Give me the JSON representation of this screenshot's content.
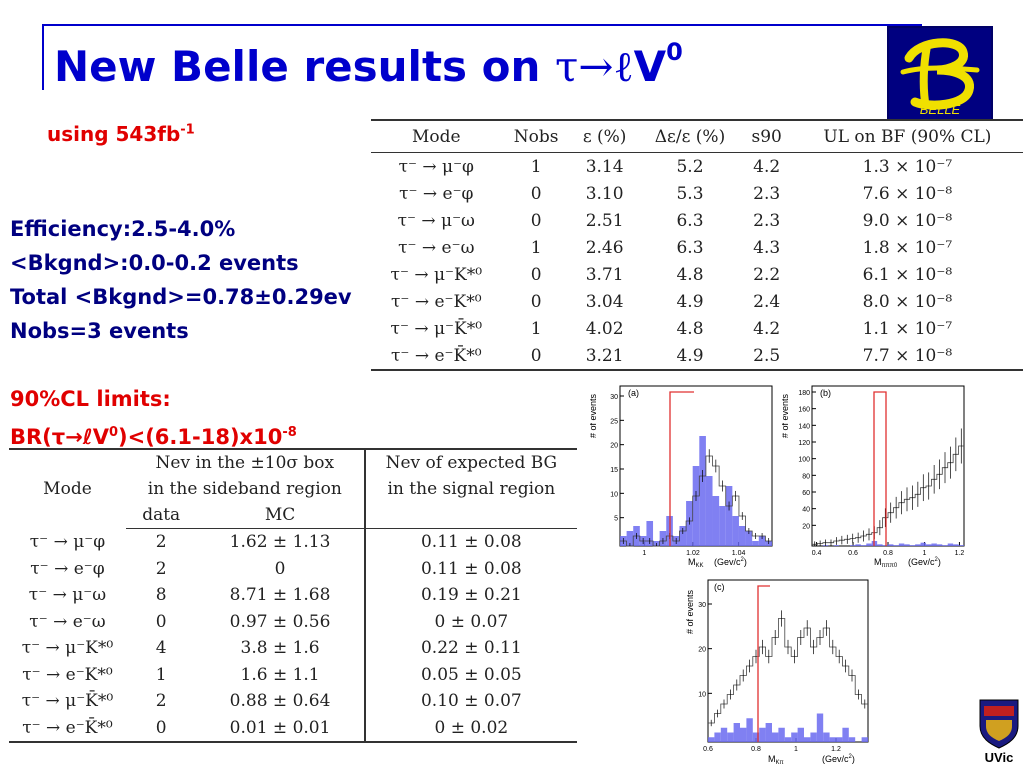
{
  "title": {
    "prefix": "New Belle results on ",
    "tau": "τ",
    "arrow": "→",
    "ell": "ℓ",
    "v": "V",
    "sup": "0"
  },
  "logo": {
    "text": "BELLE"
  },
  "subtitle": {
    "text": "using 543fb",
    "sup": "-1"
  },
  "stats": {
    "efficiency": "Efficiency:2.5-4.0%",
    "bkgnd": "<Bkgnd>:0.0-0.2 events",
    "total": "Total <Bkgnd>=0.78±0.29ev",
    "nobs": "Nobs=3 events"
  },
  "limits": {
    "heading": "90%CL limits:",
    "br_prefix": "BR(",
    "tau": "τ",
    "arrow": "→",
    "ell": "ℓ",
    "v": "V",
    "v_sup": "0",
    "br_suffix": ")<(6.1-18)x10",
    "exp": "-8"
  },
  "results_table": {
    "headers": [
      "Mode",
      "Nobs",
      "ε (%)",
      "Δε/ε (%)",
      "s90",
      "UL on BF (90% CL)"
    ],
    "rows": [
      [
        "τ⁻ → μ⁻φ",
        "1",
        "3.14",
        "5.2",
        "4.2",
        "1.3 × 10⁻⁷"
      ],
      [
        "τ⁻ → e⁻φ",
        "0",
        "3.10",
        "5.3",
        "2.3",
        "7.6 × 10⁻⁸"
      ],
      [
        "τ⁻ → μ⁻ω",
        "0",
        "2.51",
        "6.3",
        "2.3",
        "9.0 × 10⁻⁸"
      ],
      [
        "τ⁻ → e⁻ω",
        "1",
        "2.46",
        "6.3",
        "4.3",
        "1.8 × 10⁻⁷"
      ],
      [
        "τ⁻ → μ⁻K*⁰",
        "0",
        "3.71",
        "4.8",
        "2.2",
        "6.1 × 10⁻⁸"
      ],
      [
        "τ⁻ → e⁻K*⁰",
        "0",
        "3.04",
        "4.9",
        "2.4",
        "8.0 × 10⁻⁸"
      ],
      [
        "τ⁻ → μ⁻K̄*⁰",
        "1",
        "4.02",
        "4.8",
        "4.2",
        "1.1 × 10⁻⁷"
      ],
      [
        "τ⁻ → e⁻K̄*⁰",
        "0",
        "3.21",
        "4.9",
        "2.5",
        "7.7 × 10⁻⁸"
      ]
    ]
  },
  "background_table": {
    "header": {
      "mode": "Mode",
      "nev_box_l1": "Nev in the ±10σ box",
      "nev_box_l2": "in the sideband region",
      "data": "data",
      "mc": "MC",
      "nev_bg_l1": "Nev of expected BG",
      "nev_bg_l2": "in the signal region"
    },
    "rows": [
      [
        "τ⁻ → μ⁻φ",
        "2",
        "1.62 ± 1.13",
        "0.11 ± 0.08"
      ],
      [
        "τ⁻ → e⁻φ",
        "2",
        "0",
        "0.11 ± 0.08"
      ],
      [
        "τ⁻ → μ⁻ω",
        "8",
        "8.71 ± 1.68",
        "0.19 ± 0.21"
      ],
      [
        "τ⁻ → e⁻ω",
        "0",
        "0.97 ± 0.56",
        "0 ± 0.07"
      ],
      [
        "τ⁻ → μ⁻K*⁰",
        "4",
        "3.8 ± 1.6",
        "0.22 ± 0.11"
      ],
      [
        "τ⁻ → e⁻K*⁰",
        "1",
        "1.6 ± 1.1",
        "0.05 ± 0.05"
      ],
      [
        "τ⁻ → μ⁻K̄*⁰",
        "2",
        "0.88 ± 0.64",
        "0.10 ± 0.07"
      ],
      [
        "τ⁻ → e⁻K̄*⁰",
        "0",
        "0.01 ± 0.01",
        "0 ± 0.02"
      ]
    ]
  },
  "plots": [
    {
      "label": "(a)",
      "ylabel": "# of events",
      "xlabel": "M",
      "xlabel_sub": "KK",
      "unit": "(Gev/c",
      "unit_sup": "2",
      "unit_close": ")",
      "yticks": [
        "30",
        "25",
        "20",
        "15",
        "10",
        "5"
      ],
      "xticks": [
        "1",
        "1.02",
        "1.04"
      ]
    },
    {
      "label": "(b)",
      "ylabel": "# of events",
      "xlabel": "M",
      "xlabel_sub": "πππ0",
      "unit": "(Gev/c",
      "unit_sup": "2",
      "unit_close": ")",
      "yticks": [
        "180",
        "160",
        "140",
        "120",
        "100",
        "80",
        "60",
        "40",
        "20"
      ],
      "xticks": [
        "0.4",
        "0.6",
        "0.8",
        "1",
        "1.2"
      ]
    },
    {
      "label": "(c)",
      "ylabel": "# of events",
      "xlabel": "M",
      "xlabel_sub": "Kπ",
      "unit": "(Gev/c",
      "unit_sup": "2",
      "unit_close": ")",
      "yticks": [
        "30",
        "20",
        "10"
      ],
      "xticks": [
        "0.6",
        "0.8",
        "1",
        "1.2"
      ]
    }
  ],
  "colors": {
    "title_blue": "#0000cc",
    "accent_red": "#e00000",
    "text_navy": "#000080",
    "hist_fill": "#6a6af0",
    "signal_box": "#e03030"
  },
  "footer": {
    "logo_text": "UVic"
  }
}
